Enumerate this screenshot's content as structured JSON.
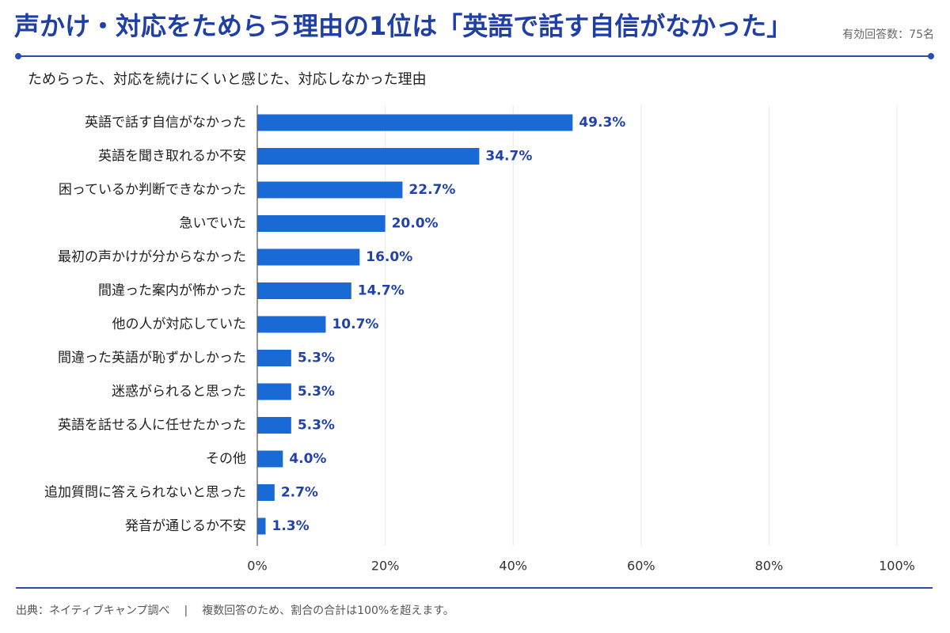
{
  "header": {
    "title": "声かけ・対応をためらう理由の1位は「英語で話す自信がなかった」",
    "respondents": "有効回答数：75名"
  },
  "chart_data": {
    "type": "bar",
    "orientation": "horizontal",
    "title": "ためらった、対応を続けにくいと感じた、対応しなかった理由",
    "categories": [
      "英語で話す自信がなかった",
      "英語を聞き取れるか不安",
      "困っているか判断できなかった",
      "急いでいた",
      "最初の声かけが分からなかった",
      "間違った案内が怖かった",
      "他の人が対応していた",
      "間違った英語が恥ずかしかった",
      "迷惑がられると思った",
      "英語を話せる人に任せたかった",
      "その他",
      "追加質問に答えられないと思った",
      "発音が通じるか不安"
    ],
    "values": [
      49.3,
      34.7,
      22.7,
      20.0,
      16.0,
      14.7,
      10.7,
      5.3,
      5.3,
      5.3,
      4.0,
      2.7,
      1.3
    ],
    "data_labels": [
      "49.3%",
      "34.7%",
      "22.7%",
      "20.0%",
      "16.0%",
      "14.7%",
      "10.7%",
      "5.3%",
      "5.3%",
      "5.3%",
      "4.0%",
      "2.7%",
      "1.3%"
    ],
    "xlim": [
      0,
      100
    ],
    "xticks": [
      0,
      20,
      40,
      60,
      80,
      100
    ],
    "xtick_labels": [
      "0%",
      "20%",
      "40%",
      "60%",
      "80%",
      "100%"
    ],
    "grid": true
  },
  "footer": {
    "source": "出典：ネイティブキャンプ調べ",
    "separator": "|",
    "note": "複数回答のため、割合の合計は100%を超えます。"
  },
  "colors": {
    "title": "#1f3fa6",
    "rule": "#2a4db0",
    "bar": "#1a6ad6",
    "value_label": "#2143a8",
    "gridline": "#e8e8e8",
    "axis": "#555555"
  }
}
